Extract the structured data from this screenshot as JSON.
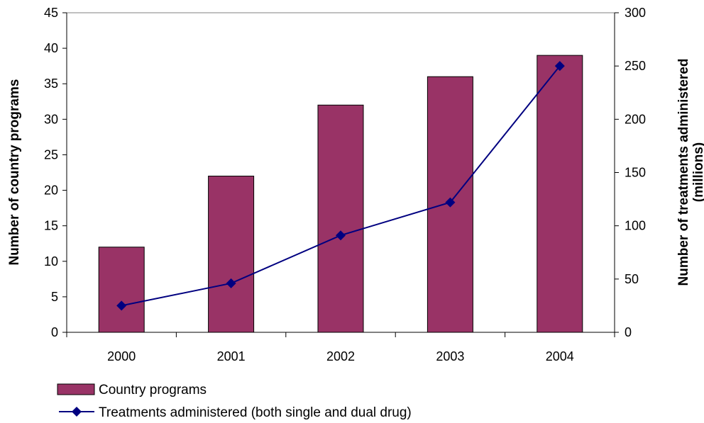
{
  "chart_data": {
    "type": "bar",
    "categories": [
      "2000",
      "2001",
      "2002",
      "2003",
      "2004"
    ],
    "series": [
      {
        "name": "Country programs",
        "type": "bar",
        "axis": "left",
        "values": [
          12,
          22,
          32,
          36,
          39
        ],
        "color": "#993366"
      },
      {
        "name": "Treatments administered (both single and dual drug)",
        "type": "line",
        "axis": "right",
        "values": [
          25,
          46,
          91,
          122,
          250
        ],
        "color": "#000080",
        "marker": "diamond"
      }
    ],
    "y_left": {
      "label": "Number of country programs",
      "lim": [
        0,
        45
      ],
      "ticks": [
        "0",
        "5",
        "10",
        "15",
        "20",
        "25",
        "30",
        "35",
        "40",
        "45"
      ]
    },
    "y_right": {
      "label_lines": [
        "Number of treatments administered",
        "(millions)"
      ],
      "lim": [
        0,
        300
      ],
      "ticks": [
        "0",
        "50",
        "100",
        "150",
        "200",
        "250",
        "300"
      ]
    },
    "grid": false,
    "legend_position": "bottom-left"
  }
}
